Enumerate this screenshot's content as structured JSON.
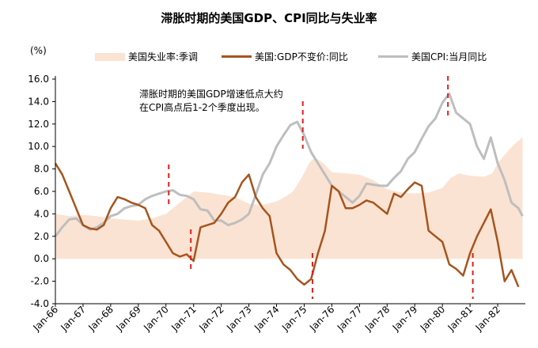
{
  "chart_data": {
    "type": "line",
    "title": "滞胀时期的美国GDP、CPI同比与失业率",
    "ylabel": "(%)",
    "xlabel": "",
    "ylim": [
      -4.0,
      16.0
    ],
    "yticks": [
      "16.0",
      "14.0",
      "12.0",
      "10.0",
      "8.0",
      "6.0",
      "4.0",
      "2.0",
      "0.0",
      "-2.0",
      "-4.0"
    ],
    "ytick_values": [
      16,
      14,
      12,
      10,
      8,
      6,
      4,
      2,
      0,
      -2,
      -4
    ],
    "xticks": [
      "Jan-66",
      "Jan-67",
      "Jan-68",
      "Jan-69",
      "Jan-70",
      "Jan-71",
      "Jan-72",
      "Jan-73",
      "Jan-74",
      "Jan-75",
      "Jan-76",
      "Jan-77",
      "Jan-78",
      "Jan-79",
      "Jan-80",
      "Jan-81",
      "Jan-82"
    ],
    "xlim": [
      1966.0,
      1983.0
    ],
    "annotation": "滞胀时期的美国GDP增速低点大约在CPI高点后1-2个季度出现。",
    "markers": [
      1970.1,
      1970.9,
      1974.95,
      1975.3,
      1980.2,
      1981.1
    ],
    "series": [
      {
        "name": "美国失业率:季调",
        "style": "area",
        "color": "#fbe3d3",
        "x": [
          1966.0,
          1966.5,
          1967.0,
          1967.5,
          1968.0,
          1968.5,
          1969.0,
          1969.5,
          1970.0,
          1970.5,
          1971.0,
          1971.5,
          1972.0,
          1972.5,
          1973.0,
          1973.5,
          1974.0,
          1974.3,
          1974.6,
          1974.9,
          1975.2,
          1975.4,
          1975.7,
          1976.0,
          1976.5,
          1977.0,
          1977.5,
          1978.0,
          1978.5,
          1979.0,
          1979.5,
          1980.0,
          1980.3,
          1980.6,
          1981.0,
          1981.5,
          1981.8,
          1982.0,
          1982.3,
          1982.6,
          1982.9
        ],
        "values": [
          4.0,
          3.8,
          3.9,
          3.8,
          3.6,
          3.5,
          3.4,
          3.6,
          4.0,
          5.0,
          6.0,
          5.9,
          5.7,
          5.5,
          4.9,
          4.8,
          5.1,
          5.5,
          6.0,
          7.2,
          8.6,
          9.0,
          8.5,
          7.7,
          7.6,
          7.5,
          7.0,
          6.2,
          5.9,
          5.8,
          5.9,
          6.3,
          7.2,
          7.6,
          7.4,
          7.3,
          7.6,
          8.5,
          9.4,
          10.2,
          10.8
        ]
      },
      {
        "name": "美国:GDP不变价:同比",
        "style": "line",
        "color": "#a5551e",
        "x": [
          1966.0,
          1966.25,
          1966.5,
          1966.75,
          1967.0,
          1967.25,
          1967.5,
          1967.75,
          1968.0,
          1968.25,
          1968.5,
          1968.75,
          1969.0,
          1969.25,
          1969.5,
          1969.75,
          1970.0,
          1970.25,
          1970.5,
          1970.75,
          1971.0,
          1971.25,
          1971.5,
          1971.75,
          1972.0,
          1972.25,
          1972.5,
          1972.75,
          1973.0,
          1973.25,
          1973.5,
          1973.75,
          1974.0,
          1974.25,
          1974.5,
          1974.75,
          1975.0,
          1975.25,
          1975.5,
          1975.75,
          1976.0,
          1976.25,
          1976.5,
          1976.75,
          1977.0,
          1977.25,
          1977.5,
          1977.75,
          1978.0,
          1978.25,
          1978.5,
          1978.75,
          1979.0,
          1979.25,
          1979.5,
          1979.75,
          1980.0,
          1980.25,
          1980.5,
          1980.75,
          1981.0,
          1981.25,
          1981.5,
          1981.75,
          1982.0,
          1982.25,
          1982.5,
          1982.75
        ],
        "values": [
          8.5,
          7.5,
          6.0,
          4.5,
          3.0,
          2.7,
          2.6,
          3.0,
          4.5,
          5.5,
          5.3,
          5.0,
          4.8,
          4.5,
          3.0,
          2.5,
          1.5,
          0.5,
          0.2,
          0.4,
          -0.2,
          2.8,
          3.0,
          3.2,
          4.0,
          5.0,
          5.5,
          6.8,
          7.5,
          5.5,
          4.5,
          3.8,
          0.5,
          -0.5,
          -1.0,
          -1.8,
          -2.3,
          -1.8,
          0.5,
          2.5,
          6.5,
          6.0,
          4.5,
          4.5,
          4.8,
          5.2,
          5.0,
          4.5,
          4.0,
          5.8,
          5.5,
          6.2,
          6.8,
          6.5,
          2.5,
          2.0,
          1.5,
          -0.5,
          -0.9,
          -1.5,
          0.5,
          2.0,
          3.2,
          4.4,
          1.5,
          -2.0,
          -1.0,
          -2.5
        ]
      },
      {
        "name": "美国CPI:当月同比",
        "style": "line",
        "color": "#bebebe",
        "x": [
          1966.0,
          1966.25,
          1966.5,
          1966.75,
          1967.0,
          1967.25,
          1967.5,
          1967.75,
          1968.0,
          1968.25,
          1968.5,
          1968.75,
          1969.0,
          1969.25,
          1969.5,
          1969.75,
          1970.0,
          1970.25,
          1970.5,
          1970.75,
          1971.0,
          1971.25,
          1971.5,
          1971.75,
          1972.0,
          1972.25,
          1972.5,
          1972.75,
          1973.0,
          1973.25,
          1973.5,
          1973.75,
          1974.0,
          1974.25,
          1974.5,
          1974.75,
          1975.0,
          1975.25,
          1975.5,
          1975.75,
          1976.0,
          1976.25,
          1976.5,
          1976.75,
          1977.0,
          1977.25,
          1977.5,
          1977.75,
          1978.0,
          1978.25,
          1978.5,
          1978.75,
          1979.0,
          1979.25,
          1979.5,
          1979.75,
          1980.0,
          1980.25,
          1980.5,
          1980.75,
          1981.0,
          1981.25,
          1981.5,
          1981.75,
          1982.0,
          1982.25,
          1982.5,
          1982.75,
          1982.9
        ],
        "values": [
          2.0,
          2.8,
          3.5,
          3.6,
          3.0,
          2.6,
          2.8,
          3.2,
          3.8,
          4.0,
          4.5,
          4.7,
          4.8,
          5.3,
          5.6,
          5.8,
          6.0,
          6.1,
          5.7,
          5.6,
          5.3,
          4.4,
          4.3,
          3.4,
          3.4,
          3.0,
          3.2,
          3.5,
          4.0,
          5.7,
          7.5,
          8.5,
          10.0,
          11.0,
          11.9,
          12.2,
          11.0,
          9.5,
          8.5,
          7.5,
          6.5,
          6.0,
          5.5,
          5.0,
          5.6,
          6.7,
          6.6,
          6.5,
          6.5,
          7.2,
          7.8,
          8.9,
          9.5,
          10.7,
          11.8,
          12.5,
          13.9,
          14.7,
          13.0,
          12.5,
          12.0,
          10.0,
          8.9,
          10.8,
          8.5,
          7.0,
          5.0,
          4.5,
          3.8
        ]
      }
    ]
  }
}
